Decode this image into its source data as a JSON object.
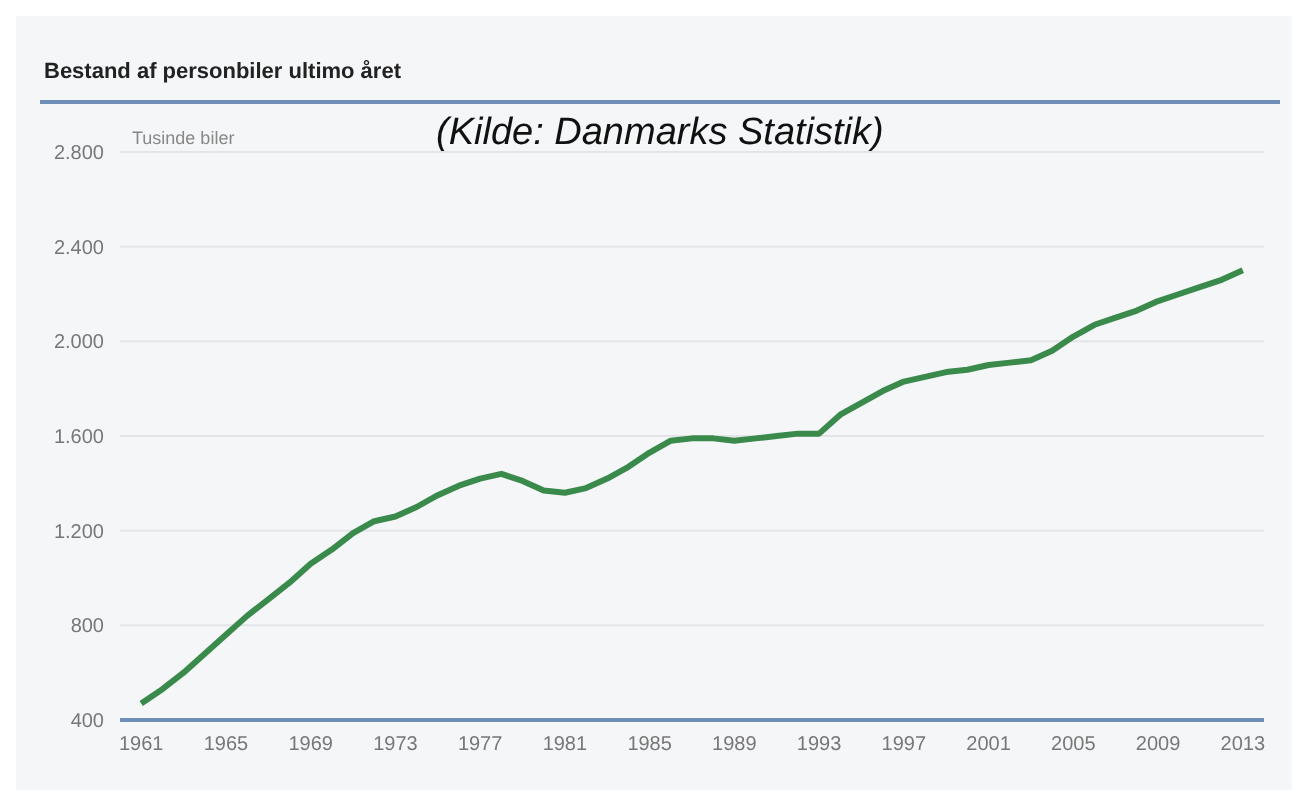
{
  "chart_data": {
    "type": "line",
    "title": "Bestand af personbiler ultimo året",
    "ylabel": "Tusinde biler",
    "annotations": [
      "(Kilde: Danmarks Statistik)"
    ],
    "x": [
      1961,
      1962,
      1963,
      1964,
      1965,
      1966,
      1967,
      1968,
      1969,
      1970,
      1971,
      1972,
      1973,
      1974,
      1975,
      1976,
      1977,
      1978,
      1979,
      1980,
      1981,
      1982,
      1983,
      1984,
      1985,
      1986,
      1987,
      1988,
      1989,
      1990,
      1991,
      1992,
      1993,
      1994,
      1995,
      1996,
      1997,
      1998,
      1999,
      2000,
      2001,
      2002,
      2003,
      2004,
      2005,
      2006,
      2007,
      2008,
      2009,
      2010,
      2011,
      2012,
      2013
    ],
    "series": [
      {
        "color": "#3a8a4c",
        "values": [
          470,
          530,
          600,
          680,
          760,
          840,
          910,
          980,
          1060,
          1120,
          1190,
          1240,
          1260,
          1300,
          1350,
          1390,
          1420,
          1440,
          1410,
          1370,
          1360,
          1380,
          1420,
          1470,
          1530,
          1580,
          1590,
          1590,
          1580,
          1590,
          1600,
          1610,
          1610,
          1690,
          1740,
          1790,
          1830,
          1850,
          1870,
          1880,
          1900,
          1910,
          1920,
          1960,
          2020,
          2070,
          2100,
          2130,
          2170,
          2200,
          2230,
          2260,
          2300
        ]
      }
    ],
    "xlim": [
      1960,
      2014
    ],
    "xticks": [
      1961,
      1965,
      1969,
      1973,
      1977,
      1981,
      1985,
      1989,
      1993,
      1997,
      2001,
      2005,
      2009,
      2013
    ],
    "ylim": [
      400,
      2800
    ],
    "yticks": [
      {
        "value": 400,
        "label": "400"
      },
      {
        "value": 800,
        "label": "800"
      },
      {
        "value": 1200,
        "label": "1.200"
      },
      {
        "value": 1600,
        "label": "1.600"
      },
      {
        "value": 2000,
        "label": "2.000"
      },
      {
        "value": 2400,
        "label": "2.400"
      },
      {
        "value": 2800,
        "label": "2.800"
      }
    ],
    "grid": "y",
    "legend": false,
    "marker": "none",
    "line_style": "solid"
  }
}
